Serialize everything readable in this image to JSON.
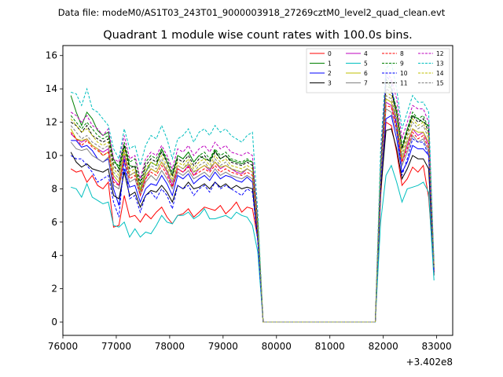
{
  "chart_data": {
    "type": "line",
    "suptitle": "Data file: modeM0/AS1T03_243T01_9000003918_27269cztM0_level2_quad_clean.evt",
    "title": "Quadrant 1 module wise count rates with 100.0s bins.",
    "xlabel": "",
    "ylabel": "",
    "x_offset_label": "+3.402e8",
    "xlim": [
      76000,
      83300
    ],
    "ylim": [
      -0.8,
      16.6
    ],
    "xticks": [
      76000,
      77000,
      78000,
      79000,
      80000,
      81000,
      82000,
      83000
    ],
    "xtick_labels": [
      "76000",
      "77000",
      "78000",
      "79000",
      "80000",
      "81000",
      "82000",
      "83000"
    ],
    "yticks": [
      0,
      2,
      4,
      6,
      8,
      10,
      12,
      14,
      16
    ],
    "ytick_labels": [
      "0",
      "2",
      "4",
      "6",
      "8",
      "10",
      "12",
      "14",
      "16"
    ],
    "grid": false,
    "legend_position": "top-right",
    "legend_columns": 4,
    "x": [
      76150,
      76250,
      76350,
      76450,
      76550,
      76650,
      76750,
      76850,
      76950,
      77050,
      77150,
      77250,
      77350,
      77450,
      77550,
      77650,
      77750,
      77850,
      77950,
      78050,
      78150,
      78250,
      78350,
      78450,
      78550,
      78650,
      78750,
      78850,
      78950,
      79050,
      79150,
      79250,
      79350,
      79450,
      79550,
      79650,
      79750,
      81850,
      81950,
      82050,
      82150,
      82250,
      82350,
      82450,
      82550,
      82650,
      82750,
      82850,
      82950
    ],
    "series": [
      {
        "name": "0",
        "color": "#ff0000",
        "dash": false,
        "values": [
          9.2,
          9.0,
          9.1,
          8.4,
          8.8,
          8.2,
          8.0,
          8.4,
          5.7,
          5.8,
          7.6,
          6.3,
          6.4,
          6.0,
          6.5,
          6.2,
          6.6,
          6.9,
          6.3,
          5.9,
          6.4,
          6.5,
          6.8,
          6.3,
          6.6,
          6.9,
          6.8,
          6.7,
          7.0,
          6.5,
          6.8,
          7.2,
          6.6,
          6.9,
          6.8,
          5.0,
          0.0,
          0.0,
          7.5,
          12.0,
          11.8,
          10.2,
          8.2,
          8.6,
          9.3,
          9.0,
          9.4,
          7.5,
          3.0
        ]
      },
      {
        "name": "1",
        "color": "#008000",
        "dash": false,
        "values": [
          13.6,
          12.6,
          11.8,
          12.6,
          12.2,
          11.5,
          11.2,
          11.4,
          9.8,
          9.2,
          10.6,
          9.4,
          9.3,
          7.9,
          9.0,
          9.6,
          9.4,
          10.4,
          9.6,
          8.8,
          10.0,
          9.8,
          10.2,
          9.6,
          10.0,
          9.8,
          9.7,
          10.3,
          9.8,
          10.0,
          9.7,
          9.6,
          9.5,
          9.7,
          9.6,
          6.0,
          0.0,
          0.0,
          9.0,
          14.6,
          14.0,
          12.6,
          10.4,
          11.6,
          12.4,
          12.2,
          12.0,
          11.8,
          3.2
        ]
      },
      {
        "name": "2",
        "color": "#0000ff",
        "dash": false,
        "values": [
          10.9,
          10.9,
          10.5,
          10.6,
          10.3,
          9.8,
          9.6,
          9.8,
          8.0,
          7.0,
          9.2,
          8.1,
          8.2,
          7.2,
          8.0,
          8.3,
          8.2,
          8.8,
          8.3,
          7.6,
          8.8,
          8.6,
          8.9,
          8.3,
          8.6,
          8.8,
          8.5,
          9.0,
          8.6,
          8.8,
          8.7,
          8.5,
          8.4,
          8.7,
          8.4,
          5.2,
          0.0,
          0.0,
          8.0,
          12.2,
          12.4,
          11.0,
          9.0,
          9.6,
          10.6,
          10.4,
          10.4,
          10.0,
          3.0
        ]
      },
      {
        "name": "3",
        "color": "#000000",
        "dash": false,
        "values": [
          10.2,
          9.6,
          9.3,
          9.5,
          9.2,
          9.1,
          9.0,
          9.2,
          7.6,
          7.4,
          9.0,
          7.6,
          7.8,
          6.9,
          7.6,
          7.9,
          7.8,
          8.2,
          7.8,
          7.2,
          8.2,
          8.0,
          8.4,
          8.0,
          8.1,
          8.3,
          8.0,
          8.4,
          8.1,
          8.3,
          8.0,
          8.2,
          8.0,
          8.1,
          8.0,
          5.0,
          0.0,
          0.0,
          7.8,
          11.5,
          11.6,
          10.4,
          8.6,
          9.2,
          10.0,
          9.8,
          9.8,
          9.2,
          2.8
        ]
      },
      {
        "name": "4",
        "color": "#bf00bf",
        "dash": false,
        "values": [
          11.3,
          11.0,
          10.8,
          11.0,
          10.6,
          10.4,
          10.2,
          10.4,
          8.6,
          8.2,
          10.0,
          8.8,
          9.0,
          7.8,
          8.6,
          9.2,
          9.0,
          9.6,
          9.0,
          8.2,
          9.2,
          9.0,
          9.4,
          8.8,
          9.2,
          9.4,
          9.1,
          9.6,
          9.2,
          9.4,
          9.2,
          9.0,
          8.9,
          9.2,
          9.0,
          5.6,
          0.0,
          0.0,
          8.6,
          13.2,
          13.0,
          11.8,
          9.6,
          10.6,
          11.6,
          11.2,
          11.4,
          10.6,
          3.1
        ]
      },
      {
        "name": "5",
        "color": "#00bfbf",
        "dash": false,
        "values": [
          8.1,
          8.0,
          7.5,
          8.3,
          7.5,
          7.3,
          7.1,
          7.2,
          5.8,
          5.7,
          6.0,
          5.1,
          5.6,
          5.1,
          5.4,
          5.3,
          5.8,
          6.4,
          6.0,
          5.9,
          6.4,
          6.4,
          6.6,
          6.2,
          6.4,
          6.8,
          6.2,
          6.2,
          6.3,
          6.4,
          6.2,
          6.6,
          6.4,
          6.3,
          5.8,
          4.2,
          0.0,
          0.0,
          6.0,
          8.8,
          9.4,
          8.4,
          7.2,
          8.0,
          8.1,
          8.2,
          8.4,
          7.8,
          2.5
        ]
      },
      {
        "name": "6",
        "color": "#bfbf00",
        "dash": false,
        "values": [
          11.6,
          11.0,
          10.9,
          11.0,
          10.6,
          10.4,
          10.0,
          10.2,
          8.8,
          8.4,
          10.2,
          8.8,
          9.0,
          7.8,
          8.8,
          9.2,
          9.0,
          9.6,
          9.1,
          8.4,
          9.4,
          9.2,
          9.5,
          9.0,
          9.2,
          9.4,
          9.2,
          9.6,
          9.3,
          9.4,
          9.2,
          9.1,
          9.0,
          9.2,
          9.0,
          5.6,
          0.0,
          0.0,
          8.8,
          13.4,
          13.2,
          12.0,
          9.8,
          10.8,
          11.6,
          11.4,
          11.4,
          10.8,
          3.2
        ]
      },
      {
        "name": "7",
        "color": "#808080",
        "dash": false,
        "values": [
          10.8,
          10.4,
          10.3,
          10.4,
          10.0,
          9.8,
          9.6,
          9.9,
          8.2,
          8.0,
          9.6,
          8.4,
          8.6,
          7.6,
          8.4,
          8.8,
          8.5,
          9.1,
          8.6,
          8.0,
          9.0,
          8.8,
          9.1,
          8.6,
          8.8,
          9.0,
          8.7,
          9.2,
          8.8,
          9.0,
          8.8,
          8.7,
          8.6,
          8.8,
          8.6,
          5.4,
          0.0,
          0.0,
          8.4,
          12.8,
          12.6,
          11.4,
          9.4,
          10.2,
          11.2,
          10.8,
          11.0,
          10.2,
          3.1
        ]
      },
      {
        "name": "8",
        "color": "#ff0000",
        "dash": true,
        "values": [
          11.4,
          11.0,
          10.6,
          10.9,
          10.5,
          10.3,
          10.0,
          10.2,
          8.4,
          8.2,
          9.8,
          8.6,
          8.8,
          7.6,
          8.6,
          9.0,
          8.8,
          9.4,
          8.8,
          8.1,
          9.2,
          9.0,
          9.3,
          8.8,
          9.0,
          9.2,
          9.0,
          9.4,
          9.0,
          9.2,
          9.0,
          8.9,
          8.8,
          9.0,
          8.8,
          5.6,
          0.0,
          0.0,
          8.6,
          13.0,
          12.9,
          11.6,
          9.6,
          10.4,
          11.4,
          11.0,
          11.2,
          10.4,
          3.1
        ]
      },
      {
        "name": "9",
        "color": "#008000",
        "dash": true,
        "values": [
          12.4,
          12.0,
          11.6,
          12.0,
          11.6,
          11.2,
          11.0,
          11.2,
          9.6,
          9.4,
          10.8,
          9.6,
          9.8,
          8.4,
          9.6,
          10.0,
          9.8,
          10.4,
          9.8,
          9.0,
          10.0,
          9.8,
          10.2,
          9.6,
          10.0,
          10.2,
          9.8,
          10.4,
          10.0,
          10.2,
          9.8,
          9.7,
          9.6,
          9.8,
          9.6,
          6.0,
          0.0,
          0.0,
          9.4,
          14.2,
          14.0,
          12.8,
          10.6,
          11.6,
          12.6,
          12.2,
          12.4,
          11.6,
          3.4
        ]
      },
      {
        "name": "10",
        "color": "#0000ff",
        "dash": true,
        "values": [
          10.0,
          9.8,
          9.8,
          9.4,
          9.0,
          8.4,
          8.6,
          8.8,
          7.2,
          6.3,
          9.8,
          7.4,
          7.6,
          6.6,
          7.6,
          7.8,
          7.4,
          8.0,
          7.6,
          6.8,
          8.2,
          8.0,
          8.2,
          7.6,
          8.0,
          8.2,
          7.8,
          8.4,
          8.0,
          8.2,
          8.0,
          7.8,
          7.6,
          8.0,
          7.8,
          4.8,
          0.0,
          0.0,
          8.2,
          14.8,
          14.4,
          11.8,
          8.8,
          9.8,
          11.0,
          10.8,
          10.8,
          10.0,
          3.0
        ]
      },
      {
        "name": "11",
        "color": "#000000",
        "dash": true,
        "values": [
          12.0,
          11.8,
          11.4,
          11.8,
          11.2,
          11.0,
          10.8,
          11.0,
          9.4,
          9.0,
          10.6,
          9.2,
          9.4,
          8.2,
          9.4,
          9.8,
          9.6,
          10.2,
          9.6,
          8.8,
          9.8,
          9.6,
          10.0,
          9.4,
          9.8,
          10.0,
          9.6,
          10.2,
          9.8,
          10.0,
          9.6,
          9.5,
          9.4,
          9.6,
          9.4,
          5.8,
          0.0,
          0.0,
          9.2,
          14.0,
          13.8,
          12.6,
          10.4,
          11.4,
          12.4,
          12.0,
          12.2,
          11.4,
          3.3
        ]
      },
      {
        "name": "12",
        "color": "#bf00bf",
        "dash": true,
        "values": [
          12.6,
          12.4,
          12.0,
          12.4,
          11.8,
          11.6,
          11.2,
          11.6,
          9.8,
          9.6,
          11.2,
          9.8,
          10.0,
          8.6,
          9.8,
          10.2,
          10.0,
          10.6,
          10.0,
          9.2,
          10.4,
          10.2,
          10.6,
          10.0,
          10.4,
          10.6,
          10.2,
          10.8,
          10.4,
          10.6,
          10.2,
          10.1,
          10.0,
          10.2,
          10.0,
          6.2,
          0.0,
          0.0,
          9.8,
          15.0,
          14.6,
          13.4,
          11.0,
          12.0,
          13.0,
          12.8,
          12.8,
          12.0,
          3.5
        ]
      },
      {
        "name": "13",
        "color": "#00bfbf",
        "dash": true,
        "values": [
          13.8,
          13.7,
          13.0,
          14.0,
          12.8,
          12.6,
          12.2,
          11.8,
          10.4,
          9.8,
          11.6,
          10.4,
          10.6,
          9.4,
          10.6,
          11.2,
          11.0,
          11.8,
          11.0,
          9.8,
          11.0,
          11.2,
          11.6,
          10.8,
          11.4,
          11.6,
          11.2,
          11.8,
          11.4,
          11.6,
          11.2,
          11.0,
          10.8,
          11.2,
          11.4,
          6.6,
          0.0,
          0.0,
          10.4,
          15.2,
          15.6,
          14.0,
          11.6,
          12.6,
          13.6,
          13.2,
          13.2,
          12.6,
          3.6
        ]
      },
      {
        "name": "14",
        "color": "#bfbf00",
        "dash": true,
        "values": [
          12.2,
          11.8,
          11.4,
          11.6,
          11.2,
          10.8,
          10.6,
          10.8,
          9.2,
          8.8,
          10.4,
          9.0,
          9.2,
          8.0,
          9.2,
          9.6,
          9.4,
          10.0,
          9.4,
          8.6,
          9.6,
          9.4,
          9.8,
          9.2,
          9.6,
          9.8,
          9.4,
          10.0,
          9.6,
          9.8,
          9.4,
          9.3,
          9.2,
          9.4,
          9.2,
          5.8,
          0.0,
          0.0,
          9.0,
          13.8,
          13.6,
          12.4,
          10.2,
          11.2,
          12.2,
          11.8,
          12.0,
          11.2,
          3.3
        ]
      },
      {
        "name": "15",
        "color": "#808080",
        "dash": true,
        "values": [
          11.8,
          11.4,
          11.0,
          11.2,
          10.8,
          10.6,
          10.4,
          10.6,
          9.0,
          8.6,
          10.2,
          8.8,
          9.0,
          7.8,
          9.0,
          9.4,
          9.2,
          9.8,
          9.2,
          8.4,
          9.4,
          9.2,
          9.6,
          9.0,
          9.4,
          9.6,
          9.2,
          9.8,
          9.4,
          9.6,
          9.2,
          9.1,
          9.0,
          9.2,
          9.0,
          5.6,
          0.0,
          0.0,
          8.8,
          13.6,
          13.4,
          12.2,
          10.0,
          11.0,
          12.0,
          11.6,
          11.8,
          11.0,
          3.2
        ]
      }
    ]
  }
}
